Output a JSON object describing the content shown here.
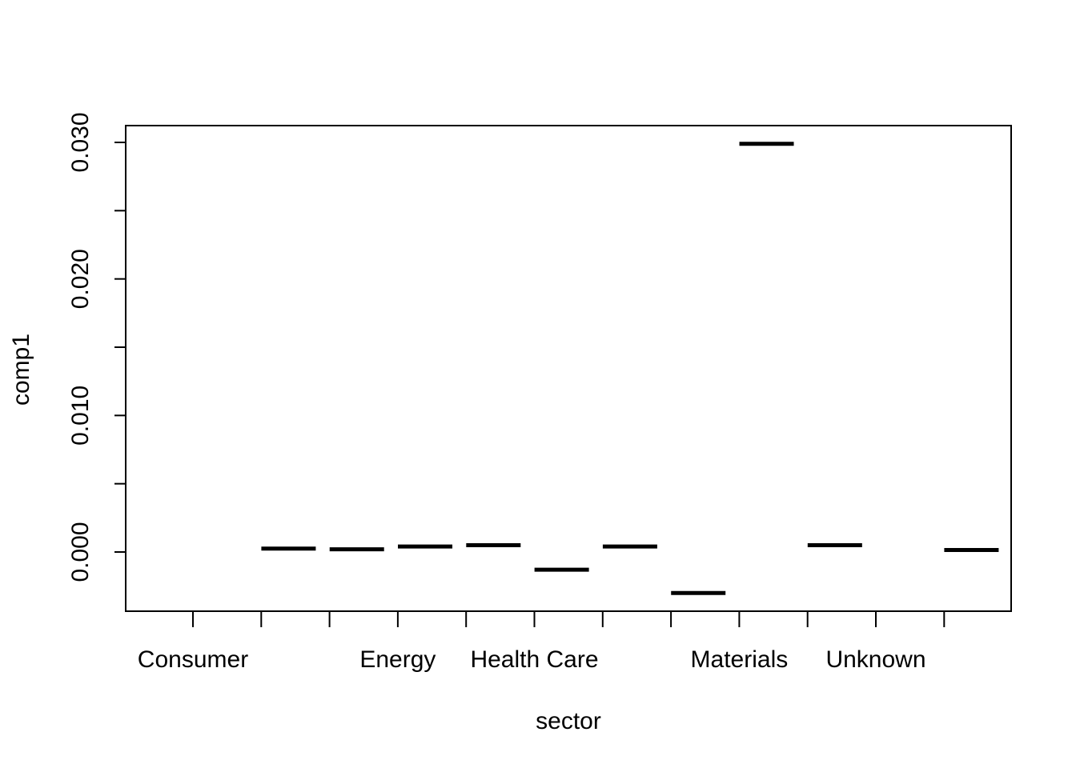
{
  "chart_data": {
    "type": "box",
    "title": "",
    "xlabel": "sector",
    "ylabel": "comp1",
    "ylim": [
      -0.0043,
      0.0312
    ],
    "yticks": [
      0.0,
      0.005,
      0.01,
      0.015,
      0.02,
      0.025,
      0.03
    ],
    "yticklabels": [
      "0.000",
      "0.010",
      "0.020",
      "0.030"
    ],
    "yticklabel_values": [
      0.0,
      0.01,
      0.02,
      0.03
    ],
    "xticklabels": [
      "Consumer",
      "Energy",
      "Health Care",
      "Materials",
      "Unknown"
    ],
    "xticklabel_positions": [
      1,
      4,
      6,
      9,
      11
    ],
    "n_categories": 12,
    "values": [
      null,
      0.00025,
      0.0002,
      0.0004,
      0.0005,
      -0.0013,
      0.0004,
      -0.003,
      0.0299,
      0.0005,
      null,
      0.00015
    ]
  }
}
